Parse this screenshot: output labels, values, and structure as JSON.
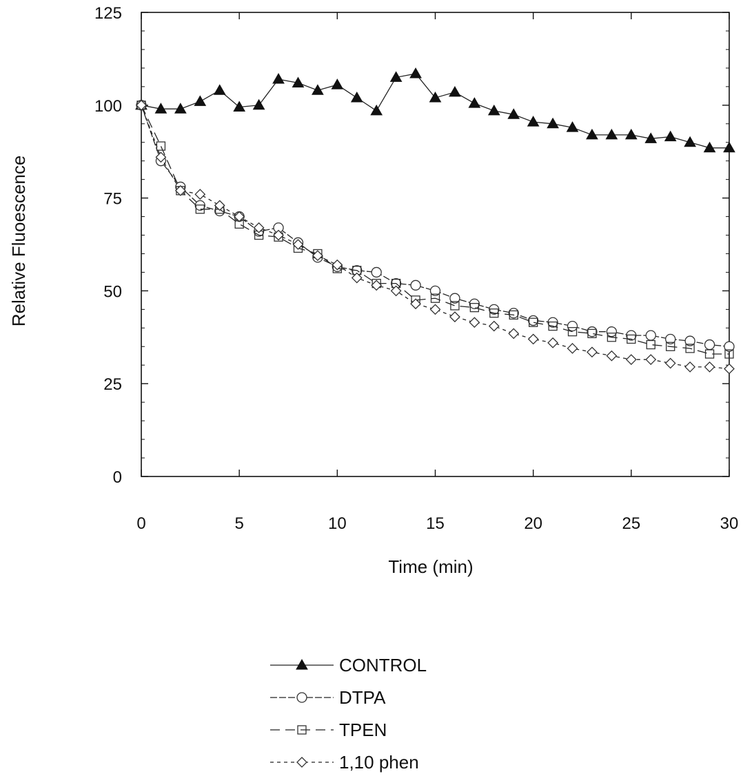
{
  "chart_data": {
    "type": "line",
    "title": "",
    "xlabel": "Time (min)",
    "ylabel": "Relative Fluoescence",
    "xlim": [
      0,
      30
    ],
    "ylim": [
      0,
      125
    ],
    "xticks": [
      0,
      5,
      10,
      15,
      20,
      25,
      30
    ],
    "yticks": [
      0,
      25,
      50,
      75,
      100,
      125
    ],
    "grid": false,
    "legend_position": "bottom-center",
    "series": [
      {
        "name": "CONTROL",
        "marker": "filled-triangle",
        "line": "solid",
        "x": [
          0,
          1,
          2,
          3,
          4,
          5,
          6,
          7,
          8,
          9,
          10,
          11,
          12,
          13,
          14,
          15,
          16,
          17,
          18,
          19,
          20,
          21,
          22,
          23,
          24,
          25,
          26,
          27,
          28,
          29,
          30
        ],
        "y": [
          100,
          99,
          99,
          101,
          104,
          99.5,
          100,
          107,
          106,
          104,
          105.5,
          102,
          98.5,
          107.5,
          108.5,
          102,
          103.5,
          100.5,
          98.5,
          97.5,
          95.5,
          95,
          94,
          92,
          92,
          92,
          91,
          91.5,
          90,
          88.5,
          88.5
        ]
      },
      {
        "name": "DTPA",
        "marker": "open-circle",
        "line": "dash-solid",
        "x": [
          0,
          1,
          2,
          3,
          4,
          5,
          6,
          7,
          8,
          9,
          10,
          11,
          12,
          13,
          14,
          15,
          16,
          17,
          18,
          19,
          20,
          21,
          22,
          23,
          24,
          25,
          26,
          27,
          28,
          29,
          30
        ],
        "y": [
          100,
          85,
          78,
          73,
          71.5,
          70,
          66,
          67,
          63,
          59,
          56.5,
          55.5,
          55,
          52,
          51.5,
          50,
          48,
          46.5,
          45,
          44,
          42,
          41.5,
          40.5,
          39,
          39,
          38,
          38,
          37,
          36.5,
          35.5,
          35
        ]
      },
      {
        "name": "TPEN",
        "marker": "open-square",
        "line": "long-dash",
        "x": [
          0,
          1,
          2,
          3,
          4,
          5,
          6,
          7,
          8,
          9,
          10,
          11,
          12,
          13,
          14,
          15,
          16,
          17,
          18,
          19,
          20,
          21,
          22,
          23,
          24,
          25,
          26,
          27,
          28,
          29,
          30
        ],
        "y": [
          100,
          89,
          77,
          72,
          72,
          68,
          65,
          64.5,
          61.5,
          60,
          56,
          55.5,
          52,
          52,
          47.5,
          48,
          46,
          45.5,
          44,
          43.5,
          41.5,
          40.5,
          39,
          38.5,
          37.5,
          37,
          35.5,
          35,
          34.5,
          33,
          33
        ]
      },
      {
        "name": "1,10 phen",
        "marker": "open-diamond",
        "line": "short-dash",
        "x": [
          0,
          1,
          2,
          3,
          4,
          5,
          6,
          7,
          8,
          9,
          10,
          11,
          12,
          13,
          14,
          15,
          16,
          17,
          18,
          19,
          20,
          21,
          22,
          23,
          24,
          25,
          26,
          27,
          28,
          29,
          30
        ],
        "y": [
          100,
          86,
          77,
          76,
          73,
          70,
          67,
          65,
          62.5,
          59.5,
          57,
          53.5,
          51.5,
          50,
          46.5,
          45,
          43,
          41.5,
          40.5,
          38.5,
          37,
          36,
          34.5,
          33.5,
          32.5,
          31.5,
          31.5,
          30.5,
          29.5,
          29.5,
          29
        ]
      }
    ]
  }
}
